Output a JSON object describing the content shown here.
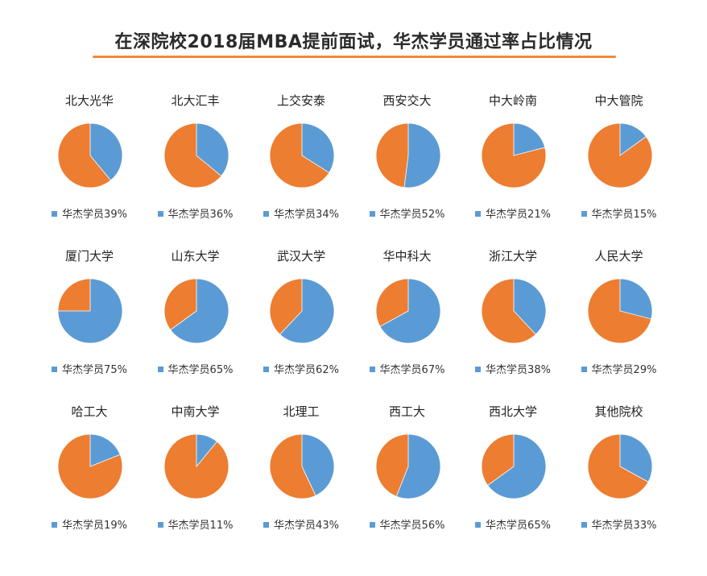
{
  "title": "在深院校2018届MBA提前面试，华杰学员通过率占比情况",
  "colors": {
    "huajie": "#5b9bd5",
    "other": "#ed7d31",
    "accent": "#ef8a3a"
  },
  "chart_data": [
    {
      "type": "pie",
      "title": "北大光华",
      "series": [
        {
          "name": "华杰学员",
          "values": [
            39
          ]
        }
      ],
      "labels": [
        "华杰学员39%"
      ]
    },
    {
      "type": "pie",
      "title": "北大汇丰",
      "series": [
        {
          "name": "华杰学员",
          "values": [
            36
          ]
        }
      ],
      "labels": [
        "华杰学员36%"
      ]
    },
    {
      "type": "pie",
      "title": "上交安泰",
      "series": [
        {
          "name": "华杰学员",
          "values": [
            34
          ]
        }
      ],
      "labels": [
        "华杰学员34%"
      ]
    },
    {
      "type": "pie",
      "title": "西安交大",
      "series": [
        {
          "name": "华杰学员",
          "values": [
            52
          ]
        }
      ],
      "labels": [
        "华杰学员52%"
      ]
    },
    {
      "type": "pie",
      "title": "中大岭南",
      "series": [
        {
          "name": "华杰学员",
          "values": [
            21
          ]
        }
      ],
      "labels": [
        "华杰学员21%"
      ]
    },
    {
      "type": "pie",
      "title": "中大管院",
      "series": [
        {
          "name": "华杰学员",
          "values": [
            15
          ]
        }
      ],
      "labels": [
        "华杰学员15%"
      ]
    },
    {
      "type": "pie",
      "title": "厦门大学",
      "series": [
        {
          "name": "华杰学员",
          "values": [
            75
          ]
        }
      ],
      "labels": [
        "华杰学员75%"
      ]
    },
    {
      "type": "pie",
      "title": "山东大学",
      "series": [
        {
          "name": "华杰学员",
          "values": [
            65
          ]
        }
      ],
      "labels": [
        "华杰学员65%"
      ]
    },
    {
      "type": "pie",
      "title": "武汉大学",
      "series": [
        {
          "name": "华杰学员",
          "values": [
            62
          ]
        }
      ],
      "labels": [
        "华杰学员62%"
      ]
    },
    {
      "type": "pie",
      "title": "华中科大",
      "series": [
        {
          "name": "华杰学员",
          "values": [
            67
          ]
        }
      ],
      "labels": [
        "华杰学员67%"
      ]
    },
    {
      "type": "pie",
      "title": "浙江大学",
      "series": [
        {
          "name": "华杰学员",
          "values": [
            38
          ]
        }
      ],
      "labels": [
        "华杰学员38%"
      ]
    },
    {
      "type": "pie",
      "title": "人民大学",
      "series": [
        {
          "name": "华杰学员",
          "values": [
            29
          ]
        }
      ],
      "labels": [
        "华杰学员29%"
      ]
    },
    {
      "type": "pie",
      "title": "哈工大",
      "series": [
        {
          "name": "华杰学员",
          "values": [
            19
          ]
        }
      ],
      "labels": [
        "华杰学员19%"
      ]
    },
    {
      "type": "pie",
      "title": "中南大学",
      "series": [
        {
          "name": "华杰学员",
          "values": [
            11
          ]
        }
      ],
      "labels": [
        "华杰学员11%"
      ]
    },
    {
      "type": "pie",
      "title": "北理工",
      "series": [
        {
          "name": "华杰学员",
          "values": [
            43
          ]
        }
      ],
      "labels": [
        "华杰学员43%"
      ]
    },
    {
      "type": "pie",
      "title": "西工大",
      "series": [
        {
          "name": "华杰学员",
          "values": [
            56
          ]
        }
      ],
      "labels": [
        "华杰学员56%"
      ]
    },
    {
      "type": "pie",
      "title": "西北大学",
      "series": [
        {
          "name": "华杰学员",
          "values": [
            65
          ]
        }
      ],
      "labels": [
        "华杰学员65%"
      ]
    },
    {
      "type": "pie",
      "title": "其他院校",
      "series": [
        {
          "name": "华杰学员",
          "values": [
            33
          ]
        }
      ],
      "labels": [
        "华杰学员33%"
      ]
    }
  ]
}
